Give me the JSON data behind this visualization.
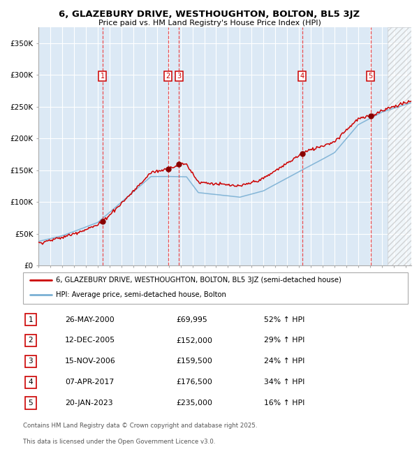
{
  "title": "6, GLAZEBURY DRIVE, WESTHOUGHTON, BOLTON, BL5 3JZ",
  "subtitle": "Price paid vs. HM Land Registry's House Price Index (HPI)",
  "legend_property": "6, GLAZEBURY DRIVE, WESTHOUGHTON, BOLTON, BL5 3JZ (semi-detached house)",
  "legend_hpi": "HPI: Average price, semi-detached house, Bolton",
  "footer_line1": "Contains HM Land Registry data © Crown copyright and database right 2025.",
  "footer_line2": "This data is licensed under the Open Government Licence v3.0.",
  "xlim_start": 1995.0,
  "xlim_end": 2026.5,
  "ylim_min": 0,
  "ylim_max": 375000,
  "yticks": [
    0,
    50000,
    100000,
    150000,
    200000,
    250000,
    300000,
    350000
  ],
  "ytick_labels": [
    "£0",
    "£50K",
    "£100K",
    "£150K",
    "£200K",
    "£250K",
    "£300K",
    "£350K"
  ],
  "transactions": [
    {
      "num": 1,
      "date": "26-MAY-2000",
      "price": 69995,
      "hpi_pct": "52% ↑ HPI",
      "year": 2000.4
    },
    {
      "num": 2,
      "date": "12-DEC-2005",
      "price": 152000,
      "hpi_pct": "29% ↑ HPI",
      "year": 2005.95
    },
    {
      "num": 3,
      "date": "15-NOV-2006",
      "price": 159500,
      "hpi_pct": "24% ↑ HPI",
      "year": 2006.87
    },
    {
      "num": 4,
      "date": "07-APR-2017",
      "price": 176500,
      "hpi_pct": "34% ↑ HPI",
      "year": 2017.27
    },
    {
      "num": 5,
      "date": "20-JAN-2023",
      "price": 235000,
      "hpi_pct": "16% ↑ HPI",
      "year": 2023.05
    }
  ],
  "background_color": "#dce9f5",
  "grid_color": "#ffffff",
  "property_line_color": "#cc0000",
  "hpi_line_color": "#7ab0d4",
  "dashed_line_color": "#ee3333",
  "marker_color": "#880000",
  "hatch_start": 2024.5
}
